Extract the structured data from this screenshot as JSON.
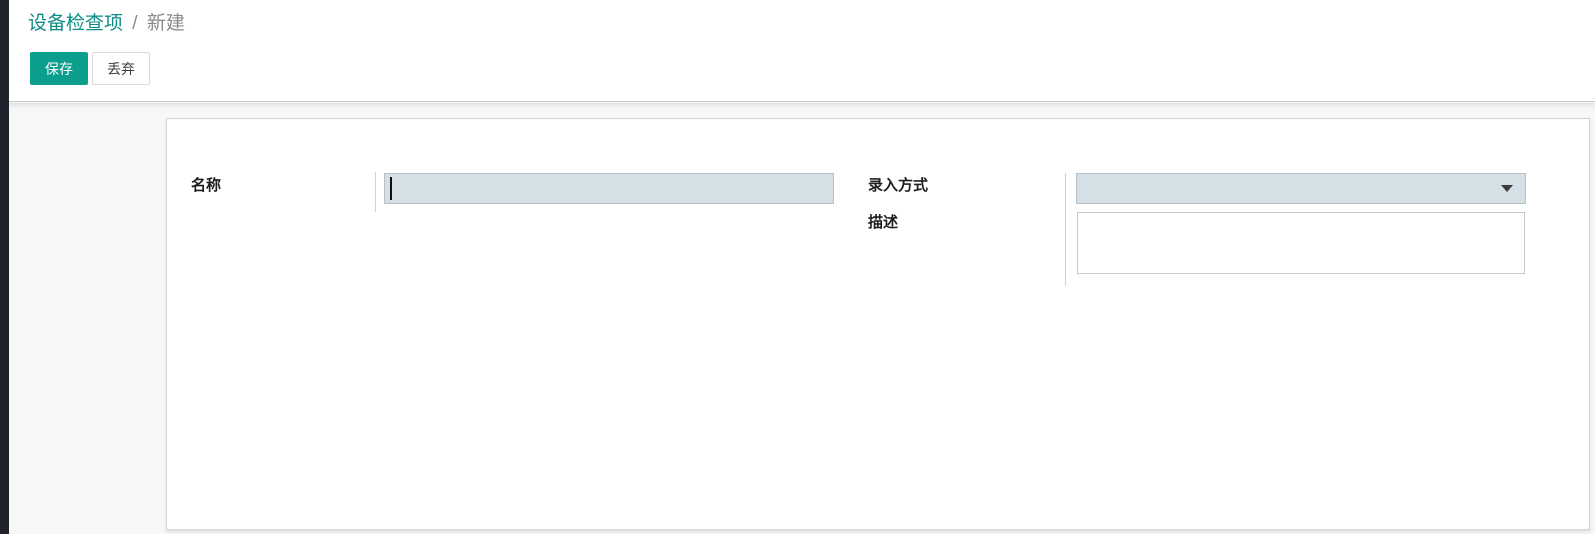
{
  "breadcrumb": {
    "parent": "设备检查项",
    "separator": "/",
    "current": "新建"
  },
  "toolbar": {
    "save_label": "保存",
    "discard_label": "丢弃"
  },
  "form": {
    "fields": {
      "name": {
        "label": "名称",
        "value": ""
      },
      "entry_method": {
        "label": "录入方式",
        "selected_value": ""
      },
      "description": {
        "label": "描述",
        "value": ""
      }
    }
  },
  "icons": {
    "entry_method_dropdown": "chevron-down-icon"
  },
  "colors": {
    "primary_button": "#0b9e8d",
    "breadcrumb_link": "#0b8c84",
    "required_field_bg": "#d4e0e6",
    "sidebar_strip": "#20232b",
    "page_background": "#f7f7f8",
    "card_border": "#d4d4d4"
  }
}
